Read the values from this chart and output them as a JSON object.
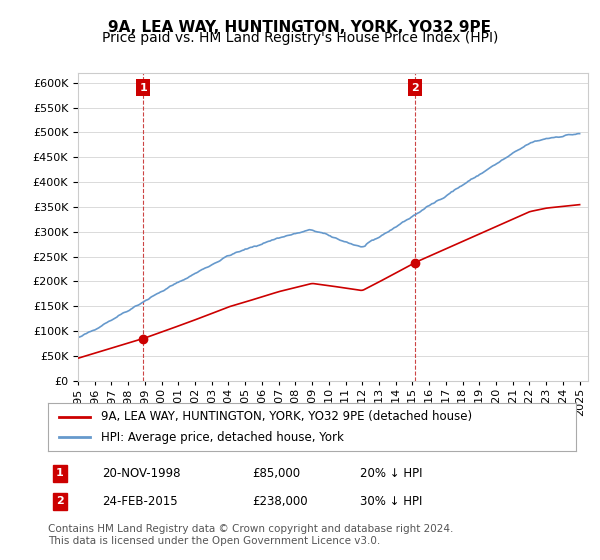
{
  "title": "9A, LEA WAY, HUNTINGTON, YORK, YO32 9PE",
  "subtitle": "Price paid vs. HM Land Registry's House Price Index (HPI)",
  "ylabel": "",
  "ylim": [
    0,
    620000
  ],
  "yticks": [
    0,
    50000,
    100000,
    150000,
    200000,
    250000,
    300000,
    350000,
    400000,
    450000,
    500000,
    550000,
    600000
  ],
  "xlim_start": 1995.0,
  "xlim_end": 2025.5,
  "sale1_date": 1998.9,
  "sale1_price": 85000,
  "sale1_label": "1",
  "sale2_date": 2015.15,
  "sale2_price": 238000,
  "sale2_label": "2",
  "red_line_color": "#cc0000",
  "blue_line_color": "#6699cc",
  "marker_color_red": "#cc0000",
  "marker_color_blue": "#6699cc",
  "grid_color": "#cccccc",
  "background_color": "#ffffff",
  "legend_label_red": "9A, LEA WAY, HUNTINGTON, YORK, YO32 9PE (detached house)",
  "legend_label_blue": "HPI: Average price, detached house, York",
  "table_row1": [
    "1",
    "20-NOV-1998",
    "£85,000",
    "20% ↓ HPI"
  ],
  "table_row2": [
    "2",
    "24-FEB-2015",
    "£238,000",
    "30% ↓ HPI"
  ],
  "footer_text": "Contains HM Land Registry data © Crown copyright and database right 2024.\nThis data is licensed under the Open Government Licence v3.0.",
  "title_fontsize": 11,
  "subtitle_fontsize": 10,
  "tick_fontsize": 8,
  "legend_fontsize": 8.5,
  "table_fontsize": 8.5,
  "footer_fontsize": 7.5,
  "dashed_vline_color": "#cc4444",
  "number_box_color": "#cc0000"
}
